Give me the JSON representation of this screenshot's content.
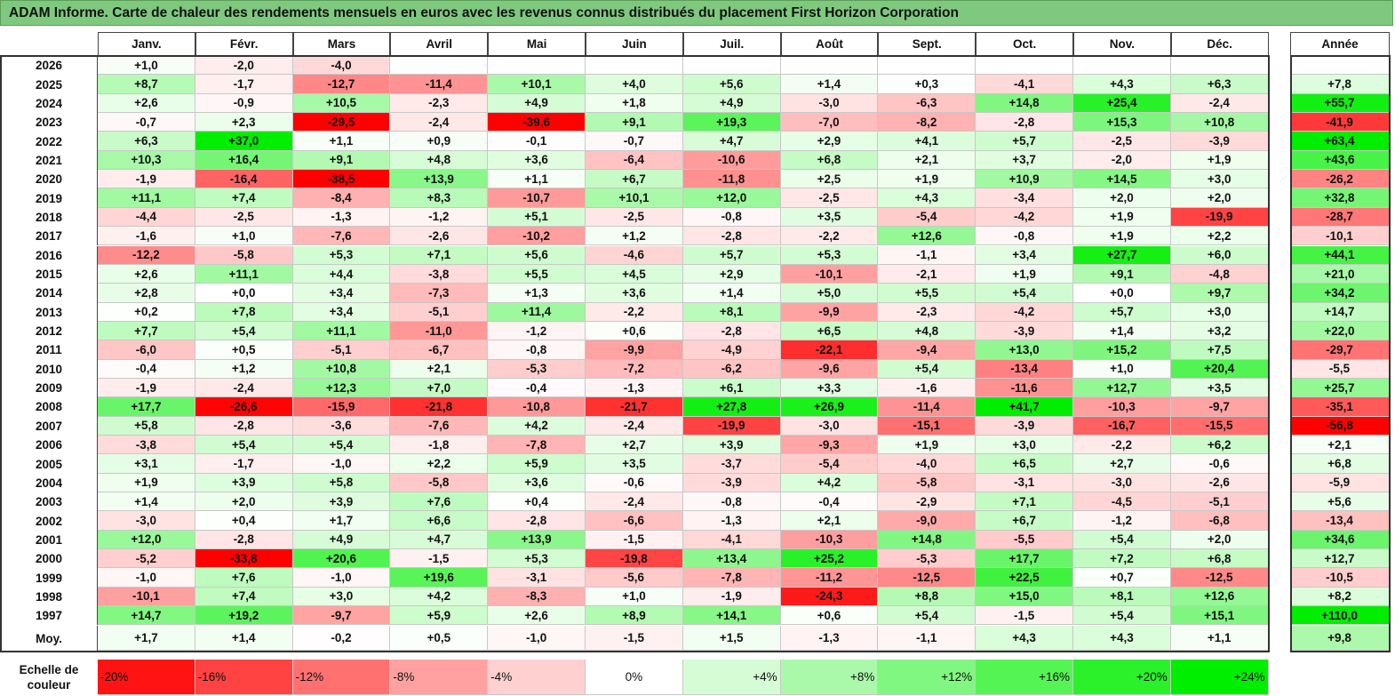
{
  "title": "ADAM Informe. Carte de chaleur des rendements mensuels en euros avec les revenus connus distribués du placement First Horizon Corporation",
  "chart_data": {
    "type": "heatmap",
    "columns": [
      "Janv.",
      "Févr.",
      "Mars",
      "Avril",
      "Mai",
      "Juin",
      "Juil.",
      "Août",
      "Sept.",
      "Oct.",
      "Nov.",
      "Déc."
    ],
    "year_column": "Année",
    "rows": [
      {
        "label": "2026",
        "values": [
          "+1,0",
          "-2,0",
          "-4,0",
          "",
          "",
          "",
          "",
          "",
          "",
          "",
          "",
          ""
        ],
        "year": ""
      },
      {
        "label": "2025",
        "values": [
          "+8,7",
          "-1,7",
          "-12,7",
          "-11,4",
          "+10,1",
          "+4,0",
          "+5,6",
          "+1,4",
          "+0,3",
          "-4,1",
          "+4,3",
          "+6,3"
        ],
        "year": "+7,8"
      },
      {
        "label": "2024",
        "values": [
          "+2,6",
          "-0,9",
          "+10,5",
          "-2,3",
          "+4,9",
          "+1,8",
          "+4,9",
          "-3,0",
          "-6,3",
          "+14,8",
          "+25,4",
          "-2,4"
        ],
        "year": "+55,7"
      },
      {
        "label": "2023",
        "values": [
          "-0,7",
          "+2,3",
          "-29,5",
          "-2,4",
          "-39,6",
          "+9,1",
          "+19,3",
          "-7,0",
          "-8,2",
          "-2,8",
          "+15,3",
          "+10,8"
        ],
        "year": "-41,9"
      },
      {
        "label": "2022",
        "values": [
          "+6,3",
          "+37,0",
          "+1,1",
          "+0,9",
          "-0,1",
          "-0,7",
          "+4,7",
          "+2,9",
          "+4,1",
          "+5,7",
          "-2,5",
          "-3,9"
        ],
        "year": "+63,4"
      },
      {
        "label": "2021",
        "values": [
          "+10,3",
          "+16,4",
          "+9,1",
          "+4,8",
          "+3,6",
          "-6,4",
          "-10,6",
          "+6,8",
          "+2,1",
          "+3,7",
          "-2,0",
          "+1,9"
        ],
        "year": "+43,6"
      },
      {
        "label": "2020",
        "values": [
          "-1,9",
          "-16,4",
          "-38,5",
          "+13,9",
          "+1,1",
          "+6,7",
          "-11,8",
          "+2,5",
          "+1,9",
          "+10,9",
          "+14,5",
          "+3,0"
        ],
        "year": "-26,2"
      },
      {
        "label": "2019",
        "values": [
          "+11,1",
          "+7,4",
          "-8,4",
          "+8,3",
          "-10,7",
          "+10,1",
          "+12,0",
          "-2,5",
          "+4,3",
          "-3,4",
          "+2,0",
          "+2,0"
        ],
        "year": "+32,8"
      },
      {
        "label": "2018",
        "values": [
          "-4,4",
          "-2,5",
          "-1,3",
          "-1,2",
          "+5,1",
          "-2,5",
          "-0,8",
          "+3,5",
          "-5,4",
          "-4,2",
          "+1,9",
          "-19,9"
        ],
        "year": "-28,7"
      },
      {
        "label": "2017",
        "values": [
          "-1,6",
          "+1,0",
          "-7,6",
          "-2,6",
          "-10,2",
          "+1,2",
          "-2,8",
          "-2,2",
          "+12,6",
          "-0,8",
          "+1,9",
          "+2,2"
        ],
        "year": "-10,1"
      },
      {
        "label": "2016",
        "values": [
          "-12,2",
          "-5,8",
          "+5,3",
          "+7,1",
          "+5,6",
          "-4,6",
          "+5,7",
          "+5,3",
          "-1,1",
          "+3,4",
          "+27,7",
          "+6,0"
        ],
        "year": "+44,1"
      },
      {
        "label": "2015",
        "values": [
          "+2,6",
          "+11,1",
          "+4,4",
          "-3,8",
          "+5,5",
          "+4,5",
          "+2,9",
          "-10,1",
          "-2,1",
          "+1,9",
          "+9,1",
          "-4,8"
        ],
        "year": "+21,0"
      },
      {
        "label": "2014",
        "values": [
          "+2,8",
          "+0,0",
          "+3,4",
          "-7,3",
          "+1,3",
          "+3,6",
          "+1,4",
          "+5,0",
          "+5,5",
          "+5,4",
          "+0,0",
          "+9,7"
        ],
        "year": "+34,2"
      },
      {
        "label": "2013",
        "values": [
          "+0,2",
          "+7,8",
          "+3,4",
          "-5,1",
          "+11,4",
          "-2,2",
          "+8,1",
          "-9,9",
          "-2,3",
          "-4,2",
          "+5,7",
          "+3,0"
        ],
        "year": "+14,7"
      },
      {
        "label": "2012",
        "values": [
          "+7,7",
          "+5,4",
          "+11,1",
          "-11,0",
          "-1,2",
          "+0,6",
          "-2,8",
          "+6,5",
          "+4,8",
          "-3,9",
          "+1,4",
          "+3,2"
        ],
        "year": "+22,0"
      },
      {
        "label": "2011",
        "values": [
          "-6,0",
          "+0,5",
          "-5,1",
          "-6,7",
          "-0,8",
          "-9,9",
          "-4,9",
          "-22,1",
          "-9,4",
          "+13,0",
          "+15,2",
          "+7,5"
        ],
        "year": "-29,7"
      },
      {
        "label": "2010",
        "values": [
          "-0,4",
          "+1,2",
          "+10,8",
          "+2,1",
          "-5,3",
          "-7,2",
          "-6,2",
          "-9,6",
          "+5,4",
          "-13,4",
          "+1,0",
          "+20,4"
        ],
        "year": "-5,5"
      },
      {
        "label": "2009",
        "values": [
          "-1,9",
          "-2,4",
          "+12,3",
          "+7,0",
          "-0,4",
          "-1,3",
          "+6,1",
          "+3,3",
          "-1,6",
          "-11,6",
          "+12,7",
          "+3,5"
        ],
        "year": "+25,7"
      },
      {
        "label": "2008",
        "values": [
          "+17,7",
          "-26,6",
          "-15,9",
          "-21,8",
          "-10,8",
          "-21,7",
          "+27,8",
          "+26,9",
          "-11,4",
          "+41,7",
          "-10,3",
          "-9,7"
        ],
        "year": "-35,1"
      },
      {
        "label": "2007",
        "values": [
          "+5,8",
          "-2,8",
          "-3,6",
          "-7,6",
          "+4,2",
          "-2,4",
          "-19,9",
          "-3,0",
          "-15,1",
          "-3,9",
          "-16,7",
          "-15,5"
        ],
        "year": "-56,8"
      },
      {
        "label": "2006",
        "values": [
          "-3,8",
          "+5,4",
          "+5,4",
          "-1,8",
          "-7,8",
          "+2,7",
          "+3,9",
          "-9,3",
          "+1,9",
          "+3,0",
          "-2,2",
          "+6,2"
        ],
        "year": "+2,1"
      },
      {
        "label": "2005",
        "values": [
          "+3,1",
          "-1,7",
          "-1,0",
          "+2,2",
          "+5,9",
          "+3,5",
          "-3,7",
          "-5,4",
          "-4,0",
          "+6,5",
          "+2,7",
          "-0,6"
        ],
        "year": "+6,8"
      },
      {
        "label": "2004",
        "values": [
          "+1,9",
          "+3,9",
          "+5,8",
          "-5,8",
          "+3,6",
          "-0,6",
          "-3,9",
          "+4,2",
          "-5,8",
          "-3,1",
          "-3,0",
          "-2,6"
        ],
        "year": "-5,9"
      },
      {
        "label": "2003",
        "values": [
          "+1,4",
          "+2,0",
          "+3,9",
          "+7,6",
          "+0,4",
          "-2,4",
          "-0,8",
          "-0,4",
          "-2,9",
          "+7,1",
          "-4,5",
          "-5,1"
        ],
        "year": "+5,6"
      },
      {
        "label": "2002",
        "values": [
          "-3,0",
          "+0,4",
          "+1,7",
          "+6,6",
          "-2,8",
          "-6,6",
          "-1,3",
          "+2,1",
          "-9,0",
          "+6,7",
          "-1,2",
          "-6,8"
        ],
        "year": "-13,4"
      },
      {
        "label": "2001",
        "values": [
          "+12,0",
          "-2,8",
          "+4,9",
          "+4,7",
          "+13,9",
          "-1,5",
          "-4,1",
          "-10,3",
          "+14,8",
          "-5,5",
          "+5,4",
          "+2,0"
        ],
        "year": "+34,6"
      },
      {
        "label": "2000",
        "values": [
          "-5,2",
          "-33,8",
          "+20,6",
          "-1,5",
          "+5,3",
          "-19,8",
          "+13,4",
          "+25,2",
          "-5,3",
          "+17,7",
          "+7,2",
          "+6,8"
        ],
        "year": "+12,7"
      },
      {
        "label": "1999",
        "values": [
          "-1,0",
          "+7,6",
          "-1,0",
          "+19,6",
          "-3,1",
          "-5,6",
          "-7,8",
          "-11,2",
          "-12,5",
          "+22,5",
          "+0,7",
          "-12,5"
        ],
        "year": "-10,5"
      },
      {
        "label": "1998",
        "values": [
          "-10,1",
          "+7,4",
          "+3,0",
          "+4,2",
          "-8,3",
          "+1,0",
          "-1,9",
          "-24,3",
          "+8,8",
          "+15,0",
          "+8,1",
          "+12,6"
        ],
        "year": "+8,2"
      },
      {
        "label": "1997",
        "values": [
          "+14,7",
          "+19,2",
          "-9,7",
          "+5,9",
          "+2,6",
          "+8,9",
          "+14,1",
          "+0,6",
          "+5,4",
          "-1,5",
          "+5,4",
          "+15,1"
        ],
        "year": "+110,0"
      }
    ],
    "average_row": {
      "label": "Moy.",
      "values": [
        "+1,7",
        "+1,4",
        "-0,2",
        "+0,5",
        "-1,0",
        "-1,5",
        "+1,5",
        "-1,3",
        "-1,1",
        "+4,3",
        "+4,3",
        "+1,1"
      ],
      "year": "+9,8"
    },
    "legend": {
      "label_line1": "Echelle de",
      "label_line2": "couleur",
      "steps": [
        "-20%",
        "-16%",
        "-12%",
        "-8%",
        "-4%",
        "0%",
        "+4%",
        "+8%",
        "+12%",
        "+16%",
        "+20%",
        "+24%"
      ],
      "step_values": [
        -20,
        -16,
        -12,
        -8,
        -4,
        0,
        4,
        8,
        12,
        16,
        20,
        24
      ]
    },
    "colors": {
      "negative": "#ff0000",
      "neutral": "#ffffff",
      "positive": "#00ee00",
      "title_background": "#7fc97f"
    }
  }
}
